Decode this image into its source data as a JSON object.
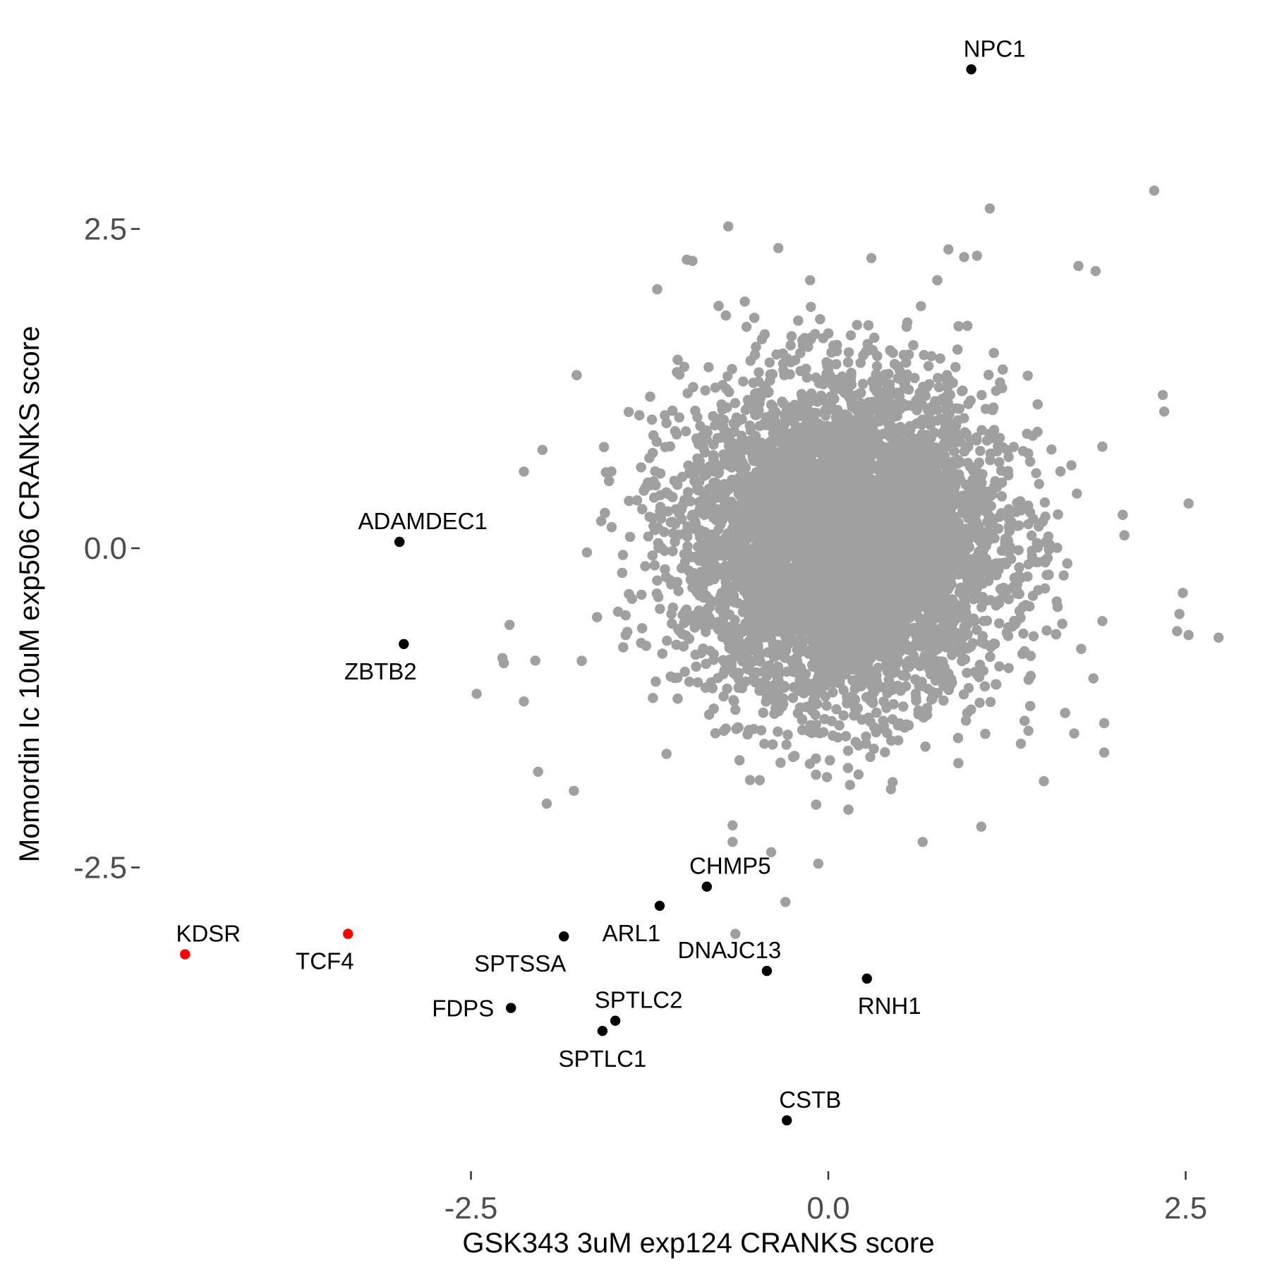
{
  "chart_data": {
    "type": "scatter",
    "xlabel": "GSK343 3uM exp124 CRANKS score",
    "ylabel": "Momordin Ic 10uM exp506 CRANKS score",
    "xlim": [
      -4.95,
      2.8
    ],
    "ylim": [
      -4.95,
      4.0
    ],
    "x_ticks": [
      -2.5,
      0.0,
      2.5
    ],
    "x_tick_labels": [
      "-2.5",
      "0.0",
      "2.5"
    ],
    "y_ticks": [
      -2.5,
      0.0,
      2.5
    ],
    "y_tick_labels": [
      "-2.5",
      "0.0",
      "2.5"
    ],
    "grid": false,
    "background": "none",
    "colors": {
      "background_points": "#a0a0a0",
      "highlight_points": "#000000",
      "hit_points": "#ff0000"
    },
    "background_cloud": {
      "description_of_distribution": "approximately bivariate normal cloud of gene scores",
      "center": [
        0.1,
        0.05
      ],
      "sd": [
        0.55,
        0.62
      ],
      "n_points": 9000,
      "color": "#a0a0a0",
      "outliers": [
        [
          2.28,
          2.8
        ],
        [
          1.13,
          2.66
        ],
        [
          -0.7,
          2.52
        ],
        [
          -0.35,
          2.35
        ],
        [
          -0.95,
          2.25
        ],
        [
          0.84,
          2.34
        ],
        [
          0.95,
          2.28
        ],
        [
          1.04,
          2.29
        ],
        [
          1.75,
          2.21
        ],
        [
          1.87,
          2.17
        ],
        [
          2.34,
          1.2
        ],
        [
          2.35,
          1.07
        ],
        [
          2.52,
          0.35
        ],
        [
          2.48,
          -0.35
        ],
        [
          2.73,
          -0.7
        ],
        [
          2.52,
          -0.68
        ],
        [
          2.44,
          -0.65
        ],
        [
          -2.46,
          -1.14
        ],
        [
          -2.13,
          -1.2
        ],
        [
          -2.05,
          -0.88
        ],
        [
          -2.03,
          -1.75
        ],
        [
          -1.97,
          -2.0
        ],
        [
          -1.78,
          -1.9
        ],
        [
          -0.67,
          -2.17
        ],
        [
          -0.4,
          -2.38
        ],
        [
          -0.67,
          -2.3
        ],
        [
          -0.07,
          -2.47
        ],
        [
          0.66,
          -2.3
        ],
        [
          1.07,
          -2.18
        ],
        [
          -0.3,
          -2.77
        ],
        [
          -0.65,
          -3.02
        ],
        [
          -2.23,
          -0.6
        ],
        [
          -2.28,
          -0.86
        ],
        [
          1.93,
          -1.37
        ],
        [
          1.93,
          -1.6
        ],
        [
          1.72,
          -1.45
        ],
        [
          1.4,
          -1.43
        ],
        [
          -2.27,
          -0.9
        ],
        [
          -2.0,
          0.77
        ],
        [
          -2.13,
          0.6
        ]
      ]
    },
    "points": [
      {
        "label": "NPC1",
        "x": 1.0,
        "y": 3.75,
        "color": "#000000"
      },
      {
        "label": "ADAMDEC1",
        "x": -3.0,
        "y": 0.05,
        "color": "#000000"
      },
      {
        "label": "ZBTB2",
        "x": -2.97,
        "y": -0.75,
        "color": "#000000"
      },
      {
        "label": "CHMP5",
        "x": -0.85,
        "y": -2.65,
        "color": "#000000"
      },
      {
        "label": "ARL1",
        "x": -1.18,
        "y": -2.8,
        "color": "#000000"
      },
      {
        "label": "SPTSSA",
        "x": -1.85,
        "y": -3.04,
        "color": "#000000"
      },
      {
        "label": "DNAJC13",
        "x": -0.43,
        "y": -3.31,
        "color": "#000000"
      },
      {
        "label": "RNH1",
        "x": 0.27,
        "y": -3.37,
        "color": "#000000"
      },
      {
        "label": "FDPS",
        "x": -2.22,
        "y": -3.6,
        "color": "#000000"
      },
      {
        "label": "SPTLC2",
        "x": -1.49,
        "y": -3.7,
        "color": "#000000"
      },
      {
        "label": "SPTLC1",
        "x": -1.58,
        "y": -3.78,
        "color": "#000000"
      },
      {
        "label": "CSTB",
        "x": -0.29,
        "y": -4.48,
        "color": "#000000"
      },
      {
        "label": "KDSR",
        "x": -4.5,
        "y": -3.18,
        "color": "#ff0000"
      },
      {
        "label": "TCF4",
        "x": -3.36,
        "y": -3.02,
        "color": "#ff0000"
      }
    ]
  }
}
